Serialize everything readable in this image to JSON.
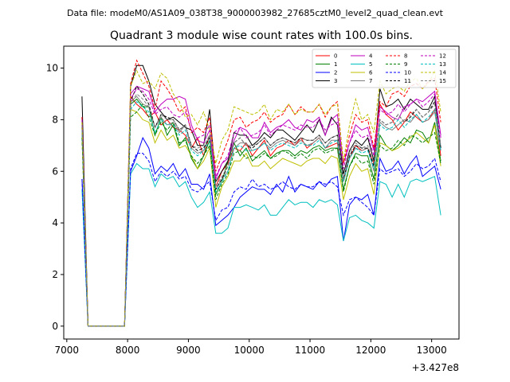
{
  "suptitle": "Data file: modeM0/AS1A09_038T38_9000003982_27685cztM0_level2_quad_clean.evt",
  "chart_data": {
    "type": "line",
    "title": "Quadrant 3 module wise count rates with 100.0s bins.",
    "xlabel": "",
    "ylabel": "",
    "x_offset_label": "+3.427e8",
    "xlim": [
      6950,
      13450
    ],
    "ylim": [
      -0.5,
      10.85
    ],
    "xticks": [
      7000,
      8000,
      9000,
      10000,
      11000,
      12000,
      13000
    ],
    "yticks": [
      0,
      2,
      4,
      6,
      8,
      10
    ],
    "grid": false,
    "legend_position": "top-right",
    "legend_columns": 4,
    "x": [
      7250,
      7350,
      7450,
      7550,
      7650,
      7750,
      7850,
      7950,
      8050,
      8150,
      8250,
      8350,
      8450,
      8550,
      8650,
      8750,
      8850,
      8950,
      9050,
      9150,
      9250,
      9350,
      9450,
      9550,
      9650,
      9750,
      9850,
      9950,
      10050,
      10150,
      10250,
      10350,
      10450,
      10550,
      10650,
      10750,
      10850,
      10950,
      11050,
      11150,
      11250,
      11350,
      11450,
      11550,
      11650,
      11750,
      11850,
      11950,
      12050,
      12150,
      12250,
      12350,
      12450,
      12550,
      12650,
      12750,
      12850,
      12950,
      13050,
      13150
    ],
    "gaps_after_index": [],
    "series": [
      {
        "name": "0",
        "color": "#ff0000",
        "dash": "solid",
        "values": [
          7.8,
          0,
          0,
          0,
          0,
          0,
          0,
          0,
          8.9,
          8.6,
          8.4,
          8.1,
          8.3,
          7.8,
          8.0,
          7.7,
          7.6,
          7.4,
          6.9,
          7.3,
          6.6,
          7.4,
          5.4,
          6.0,
          6.3,
          6.9,
          6.8,
          7.1,
          6.6,
          6.9,
          7.2,
          6.6,
          6.9,
          7.0,
          7.2,
          7.0,
          7.3,
          6.9,
          7.1,
          7.3,
          6.9,
          7.0,
          7.1,
          5.6,
          6.5,
          7.0,
          6.8,
          6.9,
          6.3,
          8.6,
          8.2,
          8.0,
          7.6,
          7.9,
          8.3,
          8.1,
          7.9,
          8.0,
          8.4,
          6.6
        ]
      },
      {
        "name": "1",
        "color": "#008000",
        "dash": "solid",
        "values": [
          7.7,
          0,
          0,
          0,
          0,
          0,
          0,
          0,
          8.6,
          8.8,
          8.5,
          8.5,
          7.4,
          8.1,
          7.4,
          7.8,
          7.0,
          7.3,
          6.5,
          6.1,
          6.6,
          7.2,
          5.1,
          5.6,
          6.4,
          7.1,
          6.6,
          6.9,
          6.4,
          6.6,
          6.8,
          6.5,
          6.7,
          6.8,
          6.8,
          6.6,
          6.8,
          6.7,
          6.9,
          7.0,
          6.8,
          6.9,
          6.9,
          5.3,
          6.2,
          6.7,
          6.6,
          6.6,
          5.7,
          7.4,
          7.0,
          6.8,
          7.0,
          7.3,
          7.1,
          7.6,
          7.5,
          7.1,
          7.9,
          6.4
        ]
      },
      {
        "name": "2",
        "color": "#0000ff",
        "dash": "solid",
        "values": [
          5.7,
          0,
          0,
          0,
          0,
          0,
          0,
          0,
          6.0,
          6.6,
          7.3,
          6.9,
          5.9,
          6.2,
          6.0,
          6.3,
          5.8,
          6.1,
          5.5,
          5.5,
          5.3,
          5.9,
          3.9,
          4.1,
          4.3,
          4.6,
          5.0,
          5.2,
          5.4,
          5.3,
          5.3,
          5.1,
          5.5,
          5.2,
          5.8,
          5.2,
          5.5,
          5.4,
          5.3,
          5.6,
          5.4,
          5.7,
          5.8,
          3.3,
          4.7,
          5.0,
          4.9,
          5.1,
          4.3,
          6.5,
          6.0,
          6.1,
          6.4,
          5.9,
          6.3,
          6.6,
          5.8,
          6.0,
          6.2,
          5.3
        ]
      },
      {
        "name": "3",
        "color": "#000000",
        "dash": "solid",
        "values": [
          8.9,
          0,
          0,
          0,
          0,
          0,
          0,
          0,
          9.3,
          10.1,
          10.1,
          9.5,
          8.6,
          8.3,
          8.0,
          8.1,
          7.9,
          7.7,
          7.6,
          7.0,
          7.0,
          8.4,
          5.6,
          6.0,
          6.4,
          7.5,
          7.4,
          7.4,
          7.0,
          7.2,
          7.5,
          7.3,
          7.6,
          7.6,
          7.4,
          7.2,
          7.5,
          7.8,
          7.5,
          8.0,
          7.4,
          8.1,
          7.8,
          5.9,
          6.8,
          7.2,
          7.0,
          7.3,
          6.4,
          9.2,
          8.5,
          8.6,
          8.8,
          8.4,
          8.8,
          8.6,
          8.4,
          8.4,
          8.9,
          6.9
        ]
      },
      {
        "name": "4",
        "color": "#bf00bf",
        "dash": "solid",
        "values": [
          8.1,
          0,
          0,
          0,
          0,
          0,
          0,
          0,
          9.0,
          9.3,
          9.2,
          9.1,
          8.3,
          8.6,
          8.8,
          8.8,
          8.9,
          8.8,
          7.8,
          7.2,
          7.1,
          7.6,
          5.7,
          6.3,
          6.5,
          7.2,
          7.7,
          7.6,
          7.3,
          7.3,
          7.9,
          7.5,
          7.7,
          7.8,
          8.0,
          7.7,
          7.6,
          8.0,
          7.9,
          8.1,
          7.4,
          8.0,
          8.2,
          6.3,
          7.1,
          7.8,
          7.6,
          7.7,
          6.8,
          8.5,
          8.3,
          8.1,
          8.0,
          8.5,
          8.6,
          8.8,
          8.7,
          8.9,
          9.1,
          7.4
        ]
      },
      {
        "name": "5",
        "color": "#00bfbf",
        "dash": "solid",
        "values": [
          5.3,
          0,
          0,
          0,
          0,
          0,
          0,
          0,
          5.9,
          6.3,
          6.1,
          6.1,
          5.4,
          5.9,
          5.7,
          5.8,
          5.4,
          5.6,
          5.0,
          4.6,
          4.8,
          5.2,
          3.6,
          3.6,
          3.8,
          4.6,
          4.6,
          4.7,
          4.6,
          4.5,
          4.7,
          4.3,
          4.3,
          4.6,
          4.9,
          4.7,
          4.8,
          4.8,
          4.6,
          4.9,
          4.8,
          4.9,
          4.7,
          3.3,
          4.2,
          4.3,
          4.1,
          4.0,
          3.8,
          5.6,
          5.5,
          5.0,
          5.5,
          5.0,
          5.6,
          5.7,
          5.6,
          5.7,
          5.8,
          4.3
        ]
      },
      {
        "name": "6",
        "color": "#bfbf00",
        "dash": "solid",
        "values": [
          7.4,
          0,
          0,
          0,
          0,
          0,
          0,
          0,
          8.4,
          8.3,
          8.0,
          7.9,
          7.1,
          7.6,
          7.2,
          7.4,
          6.9,
          7.0,
          6.6,
          6.1,
          6.4,
          6.9,
          4.6,
          5.4,
          5.8,
          6.4,
          6.4,
          6.7,
          6.2,
          6.2,
          6.4,
          6.1,
          6.3,
          6.5,
          6.4,
          6.3,
          6.2,
          6.4,
          6.5,
          6.5,
          6.3,
          6.6,
          6.5,
          4.9,
          5.8,
          6.3,
          6.0,
          6.1,
          5.1,
          7.1,
          7.0,
          6.8,
          6.9,
          7.1,
          7.3,
          7.5,
          7.3,
          7.1,
          7.8,
          6.2
        ]
      },
      {
        "name": "7",
        "color": "#808080",
        "dash": "solid",
        "values": [
          7.7,
          0,
          0,
          0,
          0,
          0,
          0,
          0,
          8.7,
          8.9,
          8.6,
          8.5,
          7.7,
          8.1,
          7.8,
          7.9,
          7.5,
          7.8,
          6.9,
          6.7,
          6.8,
          7.4,
          5.3,
          5.7,
          6.0,
          6.9,
          7.1,
          7.1,
          6.8,
          6.9,
          7.1,
          6.9,
          7.1,
          7.2,
          7.1,
          7.0,
          7.2,
          7.0,
          7.1,
          7.3,
          6.9,
          7.2,
          7.2,
          5.6,
          6.5,
          6.9,
          6.8,
          6.9,
          6.0,
          7.9,
          7.7,
          7.6,
          7.8,
          8.0,
          7.9,
          8.2,
          7.9,
          8.0,
          8.3,
          6.8
        ]
      },
      {
        "name": "8",
        "color": "#ff0000",
        "dash": "dashed",
        "values": [
          8.1,
          0,
          0,
          0,
          0,
          0,
          0,
          0,
          9.4,
          10.3,
          9.8,
          9.3,
          8.4,
          9.5,
          9.2,
          8.8,
          8.3,
          8.5,
          7.5,
          7.7,
          7.5,
          8.1,
          6.0,
          6.6,
          7.2,
          8.0,
          8.1,
          7.7,
          7.9,
          8.0,
          8.3,
          7.9,
          8.1,
          8.2,
          8.6,
          8.2,
          8.5,
          8.3,
          8.3,
          8.6,
          8.1,
          8.5,
          8.7,
          6.3,
          7.4,
          8.2,
          7.9,
          8.0,
          6.9,
          8.7,
          8.5,
          9.0,
          9.1,
          8.9,
          9.3,
          9.4,
          9.2,
          9.5,
          9.6,
          7.9
        ]
      },
      {
        "name": "9",
        "color": "#008000",
        "dash": "dashed",
        "values": [
          7.3,
          0,
          0,
          0,
          0,
          0,
          0,
          0,
          8.1,
          8.3,
          8.6,
          8.1,
          7.4,
          7.9,
          7.6,
          7.9,
          7.1,
          7.2,
          6.6,
          6.3,
          6.6,
          7.0,
          4.9,
          5.5,
          5.9,
          6.7,
          6.8,
          6.5,
          6.6,
          6.5,
          6.7,
          6.5,
          6.6,
          6.8,
          6.7,
          6.5,
          6.7,
          6.5,
          6.8,
          6.9,
          6.7,
          6.8,
          6.9,
          5.2,
          6.2,
          6.6,
          6.3,
          6.4,
          5.5,
          7.0,
          6.8,
          6.9,
          7.2,
          7.0,
          7.4,
          7.3,
          7.1,
          7.3,
          7.5,
          6.3
        ]
      },
      {
        "name": "10",
        "color": "#0000ff",
        "dash": "dashed",
        "values": [
          5.7,
          0,
          0,
          0,
          0,
          0,
          0,
          0,
          6.1,
          6.7,
          6.7,
          6.4,
          5.6,
          6.0,
          5.8,
          6.0,
          5.7,
          5.8,
          5.3,
          5.2,
          5.4,
          5.6,
          4.1,
          4.5,
          4.6,
          5.2,
          5.4,
          5.3,
          5.7,
          5.4,
          5.5,
          5.3,
          5.4,
          5.6,
          5.4,
          5.3,
          5.5,
          5.4,
          5.4,
          5.6,
          5.5,
          5.6,
          5.4,
          4.3,
          4.9,
          5.0,
          4.8,
          4.6,
          4.3,
          6.1,
          5.9,
          6.0,
          6.1,
          5.8,
          6.0,
          6.3,
          6.1,
          6.2,
          6.5,
          5.6
        ]
      },
      {
        "name": "11",
        "color": "#000000",
        "dash": "dashed",
        "values": [
          7.9,
          0,
          0,
          0,
          0,
          0,
          0,
          0,
          8.7,
          9.3,
          9.0,
          8.6,
          7.7,
          8.2,
          8.1,
          8.0,
          7.6,
          7.8,
          7.0,
          6.8,
          6.9,
          7.3,
          5.3,
          5.7,
          6.2,
          7.1,
          7.3,
          7.0,
          6.9,
          7.1,
          7.3,
          7.0,
          7.2,
          7.3,
          7.2,
          7.1,
          7.3,
          7.2,
          7.2,
          7.4,
          7.1,
          7.3,
          7.4,
          5.7,
          6.6,
          7.0,
          6.9,
          6.9,
          6.2,
          8.0,
          7.8,
          7.9,
          8.2,
          7.9,
          8.1,
          8.4,
          8.1,
          8.3,
          8.7,
          6.9
        ]
      },
      {
        "name": "12",
        "color": "#bf00bf",
        "dash": "dashed",
        "values": [
          8.0,
          0,
          0,
          0,
          0,
          0,
          0,
          0,
          8.8,
          9.2,
          9.1,
          8.8,
          8.2,
          8.4,
          8.5,
          8.2,
          8.1,
          8.3,
          7.6,
          7.3,
          7.4,
          7.8,
          5.8,
          6.3,
          6.6,
          7.5,
          7.7,
          7.3,
          7.4,
          7.5,
          7.8,
          7.4,
          7.6,
          7.8,
          7.7,
          7.6,
          7.8,
          7.7,
          7.7,
          8.0,
          7.6,
          7.8,
          7.9,
          6.1,
          7.1,
          7.6,
          7.3,
          7.4,
          6.6,
          8.4,
          8.2,
          8.3,
          8.6,
          8.3,
          8.6,
          8.8,
          8.5,
          8.7,
          9.0,
          7.3
        ]
      },
      {
        "name": "13",
        "color": "#00bfbf",
        "dash": "dashed",
        "values": [
          7.6,
          0,
          0,
          0,
          0,
          0,
          0,
          0,
          8.4,
          8.7,
          8.5,
          8.3,
          7.5,
          8.0,
          7.8,
          7.8,
          7.4,
          7.6,
          6.8,
          6.6,
          6.8,
          7.2,
          5.2,
          5.6,
          6.0,
          6.9,
          7.0,
          6.8,
          6.8,
          6.9,
          7.1,
          6.8,
          7.0,
          7.1,
          7.0,
          6.9,
          7.1,
          7.0,
          7.0,
          7.2,
          6.9,
          7.1,
          7.2,
          5.6,
          6.5,
          6.9,
          6.7,
          6.8,
          6.1,
          7.8,
          7.6,
          7.7,
          8.0,
          7.7,
          8.0,
          8.2,
          7.9,
          8.1,
          8.4,
          6.8
        ]
      },
      {
        "name": "14",
        "color": "#bfbf00",
        "dash": "dashed",
        "values": [
          7.9,
          0,
          0,
          0,
          0,
          0,
          0,
          0,
          9.3,
          9.9,
          9.4,
          9.5,
          9.2,
          9.8,
          9.6,
          9.0,
          8.7,
          8.1,
          8.2,
          7.8,
          8.3,
          7.6,
          6.3,
          7.2,
          7.6,
          8.5,
          8.4,
          8.3,
          8.2,
          8.3,
          8.6,
          8.0,
          8.4,
          8.3,
          8.6,
          8.2,
          8.4,
          8.3,
          8.3,
          8.6,
          8.2,
          8.5,
          8.6,
          6.4,
          7.8,
          8.8,
          8.0,
          8.2,
          7.5,
          9.5,
          9.0,
          9.2,
          9.3,
          9.1,
          9.5,
          9.6,
          9.2,
          9.4,
          9.9,
          8.3
        ]
      },
      {
        "name": "15",
        "color": "#808080",
        "dash": "dashed",
        "values": [
          7.8,
          0,
          0,
          0,
          0,
          0,
          0,
          0,
          8.6,
          9.0,
          8.8,
          8.5,
          7.7,
          8.2,
          8.0,
          8.0,
          7.6,
          7.8,
          7.0,
          6.9,
          7.0,
          7.4,
          5.4,
          5.8,
          6.2,
          7.1,
          7.3,
          7.0,
          7.0,
          7.1,
          7.3,
          7.0,
          7.2,
          7.3,
          7.2,
          7.1,
          7.3,
          7.2,
          7.2,
          7.4,
          7.1,
          7.3,
          7.4,
          5.7,
          6.7,
          7.1,
          6.9,
          7.0,
          6.3,
          8.0,
          7.8,
          7.9,
          8.2,
          7.9,
          8.2,
          8.4,
          8.1,
          8.3,
          8.6,
          7.0
        ]
      }
    ]
  }
}
